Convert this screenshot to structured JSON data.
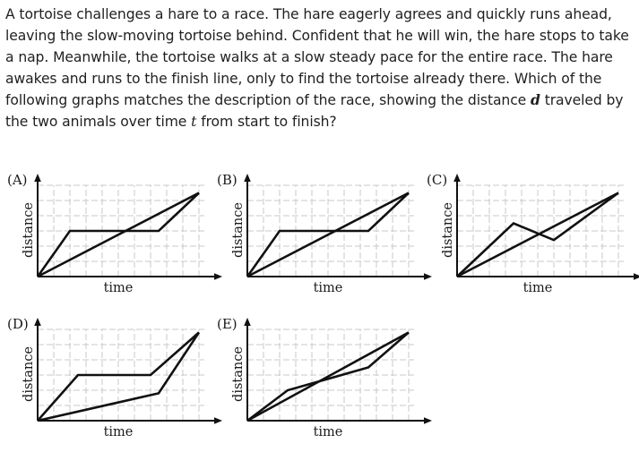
{
  "question": {
    "part1": "A tortoise challenges a hare to a race. The hare eagerly agrees and quickly runs ahead, leaving the slow-moving tortoise behind. Confident that he will win, the hare stops to take a nap. Meanwhile, the tortoise walks at a slow steady pace for the entire race. The hare awakes and runs to the finish line, only to find the tortoise already there. Which of the following graphs matches the description of the race, showing the distance ",
    "var_d": "d",
    "part2": " traveled by the two animals over time ",
    "var_t": "t",
    "part3": " from start to finish?"
  },
  "graphs": [
    {
      "label": "(A)",
      "xlabel": "time",
      "ylabel": "distance",
      "lines": [
        [
          [
            0,
            0
          ],
          [
            2,
            3
          ],
          [
            7.5,
            3
          ],
          [
            10,
            5.5
          ]
        ],
        [
          [
            0,
            0
          ],
          [
            10,
            5.5
          ]
        ]
      ]
    },
    {
      "label": "(B)",
      "xlabel": "time",
      "ylabel": "distance",
      "lines": [
        [
          [
            0,
            0
          ],
          [
            2,
            3
          ],
          [
            7.5,
            3
          ],
          [
            10,
            5.5
          ]
        ],
        [
          [
            0,
            0
          ],
          [
            10,
            5.5
          ]
        ]
      ]
    },
    {
      "label": "(C)",
      "xlabel": "time",
      "ylabel": "distance",
      "lines": [
        [
          [
            0,
            0
          ],
          [
            3.5,
            3.5
          ],
          [
            6,
            2.4
          ],
          [
            10,
            5.5
          ]
        ],
        [
          [
            0,
            0
          ],
          [
            10,
            5.5
          ]
        ]
      ]
    },
    {
      "label": "(D)",
      "xlabel": "time",
      "ylabel": "distance",
      "lines": [
        [
          [
            0,
            0
          ],
          [
            2.5,
            3
          ],
          [
            7,
            3
          ],
          [
            10,
            5.8
          ]
        ],
        [
          [
            0,
            0
          ],
          [
            7.5,
            1.8
          ],
          [
            10,
            5.8
          ]
        ]
      ]
    },
    {
      "label": "(E)",
      "xlabel": "time",
      "ylabel": "distance",
      "lines": [
        [
          [
            0,
            0
          ],
          [
            2.5,
            2
          ],
          [
            7.5,
            3.5
          ],
          [
            10,
            5.8
          ]
        ],
        [
          [
            0,
            0
          ],
          [
            10,
            5.8
          ]
        ]
      ]
    }
  ]
}
